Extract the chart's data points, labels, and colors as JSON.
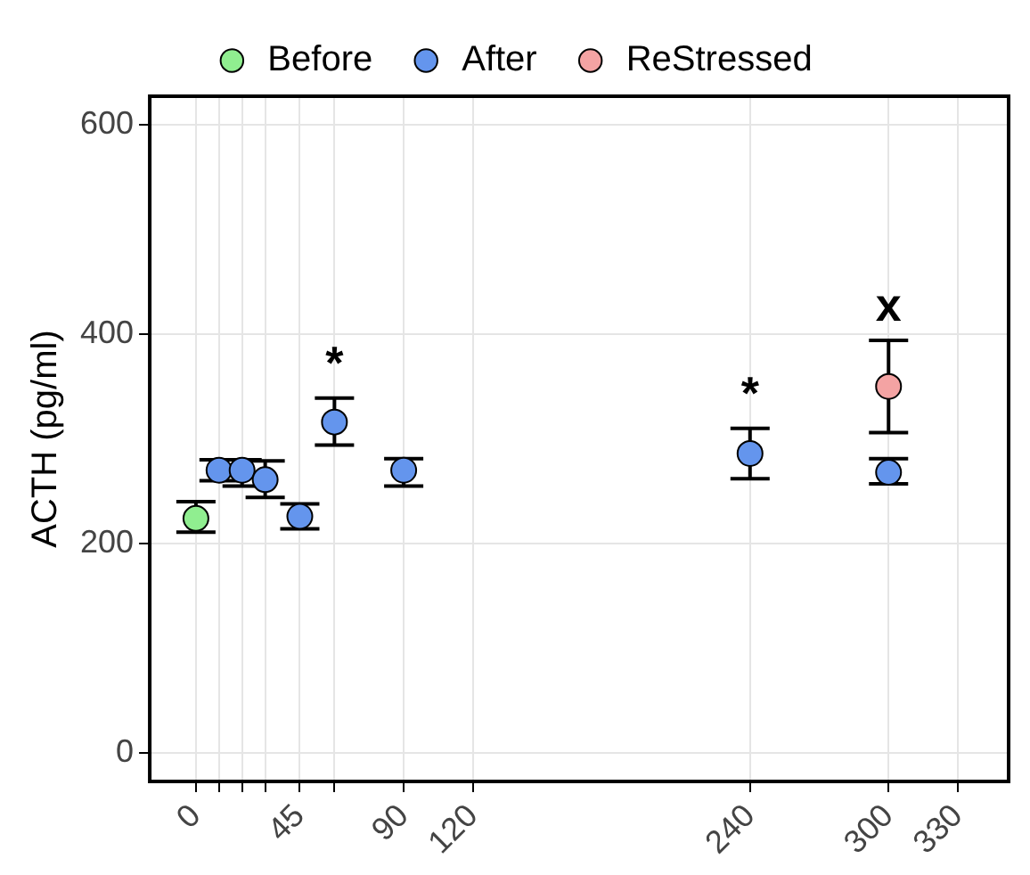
{
  "chart_data": {
    "type": "scatter",
    "ylabel": "ACTH (pg/ml)",
    "xlim": [
      -20,
      352
    ],
    "xticks": [
      0,
      {
        "value": 10,
        "label": null
      },
      {
        "value": 20,
        "label": null
      },
      {
        "value": 30,
        "label": null
      },
      45,
      {
        "value": 60,
        "label": null
      },
      90,
      120,
      240,
      300,
      330
    ],
    "ylim": [
      -27,
      627
    ],
    "yticks": [
      0,
      200,
      400,
      600
    ],
    "grid": true,
    "legend": "top",
    "marker": "circle",
    "series": [
      {
        "name": "Before",
        "color": "#90ee90",
        "x": [
          0
        ],
        "values": [
          224
        ],
        "errors": [
          [
            211,
            240
          ]
        ]
      },
      {
        "name": "After",
        "color": "#6495ed",
        "x": [
          10,
          20,
          30,
          45,
          60,
          90,
          240,
          300
        ],
        "values": [
          270,
          270,
          261,
          226,
          316,
          270,
          286,
          268
        ],
        "errors": [
          [
            260,
            280
          ],
          [
            255,
            280
          ],
          [
            244,
            279
          ],
          [
            214,
            238
          ],
          [
            294,
            339
          ],
          [
            255,
            281
          ],
          [
            262,
            310
          ],
          [
            257,
            281
          ]
        ],
        "value_labels": [
          null,
          null,
          null,
          null,
          "*",
          null,
          "*",
          null
        ]
      },
      {
        "name": "ReStressed",
        "color": "#f4a3a3",
        "x": [
          300
        ],
        "values": [
          350
        ],
        "errors": [
          [
            306,
            394
          ]
        ],
        "value_labels": [
          "x"
        ]
      }
    ]
  }
}
